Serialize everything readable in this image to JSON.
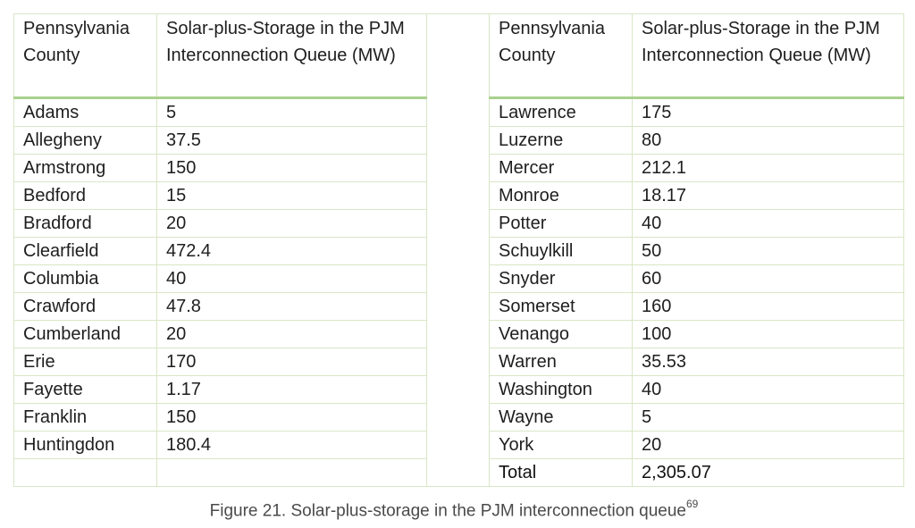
{
  "table": {
    "headers": {
      "county": "Pennsylvania County",
      "capacity": "Solar-plus-Storage in the PJM Interconnection Queue (MW)"
    },
    "left_rows": [
      {
        "county": "Adams",
        "mw": "5"
      },
      {
        "county": "Allegheny",
        "mw": "37.5"
      },
      {
        "county": "Armstrong",
        "mw": "150"
      },
      {
        "county": "Bedford",
        "mw": "15"
      },
      {
        "county": "Bradford",
        "mw": "20"
      },
      {
        "county": "Clearfield",
        "mw": "472.4"
      },
      {
        "county": "Columbia",
        "mw": "40"
      },
      {
        "county": "Crawford",
        "mw": "47.8"
      },
      {
        "county": "Cumberland",
        "mw": "20"
      },
      {
        "county": "Erie",
        "mw": "170"
      },
      {
        "county": "Fayette",
        "mw": "1.17"
      },
      {
        "county": "Franklin",
        "mw": "150"
      },
      {
        "county": "Huntingdon",
        "mw": "180.4"
      },
      {
        "county": "",
        "mw": ""
      }
    ],
    "right_rows": [
      {
        "county": "Lawrence",
        "mw": "175"
      },
      {
        "county": "Luzerne",
        "mw": "80"
      },
      {
        "county": "Mercer",
        "mw": "212.1"
      },
      {
        "county": "Monroe",
        "mw": "18.17"
      },
      {
        "county": "Potter",
        "mw": "40"
      },
      {
        "county": "Schuylkill",
        "mw": "50"
      },
      {
        "county": "Snyder",
        "mw": "60"
      },
      {
        "county": "Somerset",
        "mw": "160"
      },
      {
        "county": "Venango",
        "mw": "100"
      },
      {
        "county": "Warren",
        "mw": "35.53"
      },
      {
        "county": "Washington",
        "mw": "40"
      },
      {
        "county": "Wayne",
        "mw": "5"
      },
      {
        "county": "York",
        "mw": "20"
      },
      {
        "county": "Total",
        "mw": "2,305.07"
      }
    ]
  },
  "caption": {
    "text": "Figure 21. Solar-plus-storage in the PJM interconnection queue",
    "footnote": "69"
  },
  "colors": {
    "grid_border": "#d9e6c6",
    "header_rule": "#a9d18e",
    "caption_text": "#4a4a4a"
  }
}
